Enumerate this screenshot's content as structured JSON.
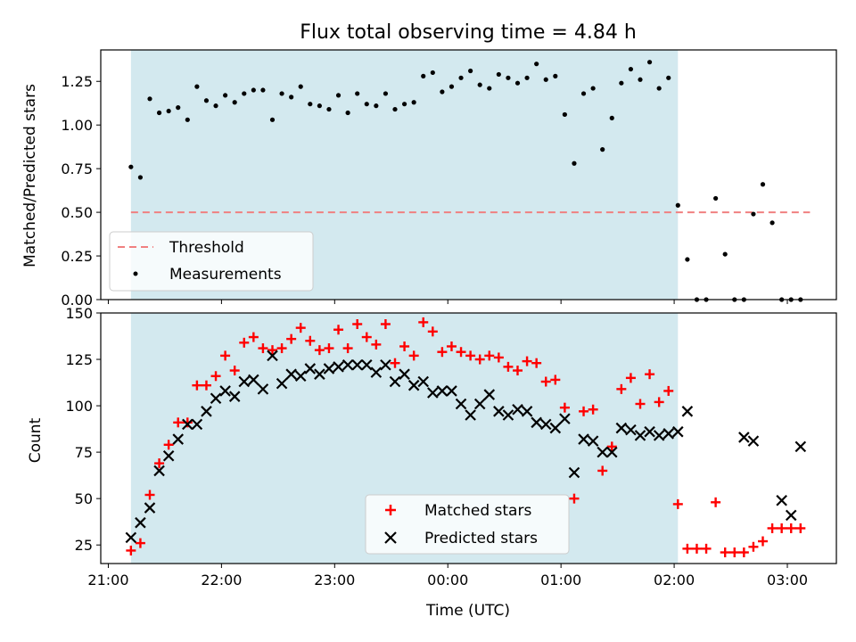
{
  "title": "Flux total observing time = 4.84 h",
  "colors": {
    "shade": "#d3e9ef",
    "threshold": "#f08080",
    "measurement": "#000000",
    "matched": "#ff0000",
    "predicted": "#000000"
  },
  "chart_data": [
    {
      "type": "scatter",
      "ylabel": "Matched/Predicted stars",
      "ylim": [
        0,
        1.43
      ],
      "yticks": [
        0.0,
        0.25,
        0.5,
        0.75,
        1.0,
        1.25
      ],
      "ytick_labels": [
        "0.00",
        "0.25",
        "0.50",
        "0.75",
        "1.00",
        "1.25"
      ],
      "shaded_span": [
        "21:12",
        "02:02"
      ],
      "legend": {
        "placement": "lower-left",
        "entries": [
          "Threshold",
          "Measurements"
        ]
      },
      "threshold": {
        "name": "Threshold",
        "y": 0.5,
        "x": [
          "21:12",
          "03:12"
        ],
        "style": "dashed"
      },
      "series": [
        {
          "name": "Measurements",
          "points": [
            [
              "21:12",
              0.76
            ],
            [
              "21:17",
              0.7
            ],
            [
              "21:22",
              1.15
            ],
            [
              "21:27",
              1.07
            ],
            [
              "21:32",
              1.08
            ],
            [
              "21:37",
              1.1
            ],
            [
              "21:42",
              1.03
            ],
            [
              "21:47",
              1.22
            ],
            [
              "21:52",
              1.14
            ],
            [
              "21:57",
              1.11
            ],
            [
              "22:02",
              1.17
            ],
            [
              "22:07",
              1.13
            ],
            [
              "22:12",
              1.18
            ],
            [
              "22:17",
              1.2
            ],
            [
              "22:22",
              1.2
            ],
            [
              "22:27",
              1.03
            ],
            [
              "22:32",
              1.18
            ],
            [
              "22:37",
              1.16
            ],
            [
              "22:42",
              1.22
            ],
            [
              "22:47",
              1.12
            ],
            [
              "22:52",
              1.11
            ],
            [
              "22:57",
              1.09
            ],
            [
              "23:02",
              1.17
            ],
            [
              "23:07",
              1.07
            ],
            [
              "23:12",
              1.18
            ],
            [
              "23:17",
              1.12
            ],
            [
              "23:22",
              1.11
            ],
            [
              "23:27",
              1.18
            ],
            [
              "23:32",
              1.09
            ],
            [
              "23:37",
              1.12
            ],
            [
              "23:42",
              1.13
            ],
            [
              "23:47",
              1.28
            ],
            [
              "23:52",
              1.3
            ],
            [
              "23:57",
              1.19
            ],
            [
              "00:02",
              1.22
            ],
            [
              "00:07",
              1.27
            ],
            [
              "00:12",
              1.31
            ],
            [
              "00:17",
              1.23
            ],
            [
              "00:22",
              1.21
            ],
            [
              "00:27",
              1.29
            ],
            [
              "00:32",
              1.27
            ],
            [
              "00:37",
              1.24
            ],
            [
              "00:42",
              1.27
            ],
            [
              "00:47",
              1.35
            ],
            [
              "00:52",
              1.26
            ],
            [
              "00:57",
              1.28
            ],
            [
              "01:02",
              1.06
            ],
            [
              "01:07",
              0.78
            ],
            [
              "01:12",
              1.18
            ],
            [
              "01:17",
              1.21
            ],
            [
              "01:22",
              0.86
            ],
            [
              "01:27",
              1.04
            ],
            [
              "01:32",
              1.24
            ],
            [
              "01:37",
              1.32
            ],
            [
              "01:42",
              1.26
            ],
            [
              "01:47",
              1.36
            ],
            [
              "01:52",
              1.21
            ],
            [
              "01:57",
              1.27
            ],
            [
              "02:02",
              0.54
            ],
            [
              "02:07",
              0.23
            ],
            [
              "02:12",
              0.0
            ],
            [
              "02:17",
              0.0
            ],
            [
              "02:22",
              0.58
            ],
            [
              "02:27",
              0.26
            ],
            [
              "02:32",
              0.0
            ],
            [
              "02:37",
              0.0
            ],
            [
              "02:42",
              0.49
            ],
            [
              "02:47",
              0.66
            ],
            [
              "02:52",
              0.44
            ],
            [
              "02:57",
              0.0
            ],
            [
              "03:02",
              0.0
            ],
            [
              "03:07",
              0.0
            ]
          ]
        }
      ]
    },
    {
      "type": "scatter",
      "xlabel": "Time (UTC)",
      "ylabel": "Count",
      "ylim": [
        15,
        150
      ],
      "yticks": [
        25,
        50,
        75,
        100,
        125,
        150
      ],
      "xlim": [
        "20:56",
        "03:26"
      ],
      "xticks": [
        "21:00",
        "22:00",
        "23:00",
        "00:00",
        "01:00",
        "02:00",
        "03:00"
      ],
      "shaded_span": [
        "21:12",
        "02:02"
      ],
      "legend": {
        "placement": "lower-center",
        "entries": [
          "Matched stars",
          "Predicted stars"
        ]
      },
      "series": [
        {
          "name": "Matched stars",
          "points": [
            [
              "21:12",
              22
            ],
            [
              "21:17",
              26
            ],
            [
              "21:22",
              52
            ],
            [
              "21:27",
              69
            ],
            [
              "21:32",
              79
            ],
            [
              "21:37",
              91
            ],
            [
              "21:42",
              91
            ],
            [
              "21:47",
              111
            ],
            [
              "21:52",
              111
            ],
            [
              "21:57",
              116
            ],
            [
              "22:02",
              127
            ],
            [
              "22:07",
              119
            ],
            [
              "22:12",
              134
            ],
            [
              "22:17",
              137
            ],
            [
              "22:22",
              131
            ],
            [
              "22:27",
              130
            ],
            [
              "22:32",
              131
            ],
            [
              "22:37",
              136
            ],
            [
              "22:42",
              142
            ],
            [
              "22:47",
              135
            ],
            [
              "22:52",
              130
            ],
            [
              "22:57",
              131
            ],
            [
              "23:02",
              141
            ],
            [
              "23:07",
              131
            ],
            [
              "23:12",
              144
            ],
            [
              "23:17",
              137
            ],
            [
              "23:22",
              133
            ],
            [
              "23:27",
              144
            ],
            [
              "23:32",
              123
            ],
            [
              "23:37",
              132
            ],
            [
              "23:42",
              127
            ],
            [
              "23:47",
              145
            ],
            [
              "23:52",
              140
            ],
            [
              "23:57",
              129
            ],
            [
              "00:02",
              132
            ],
            [
              "00:07",
              129
            ],
            [
              "00:12",
              127
            ],
            [
              "00:17",
              125
            ],
            [
              "00:22",
              127
            ],
            [
              "00:27",
              126
            ],
            [
              "00:32",
              121
            ],
            [
              "00:37",
              119
            ],
            [
              "00:42",
              124
            ],
            [
              "00:47",
              123
            ],
            [
              "00:52",
              113
            ],
            [
              "00:57",
              114
            ],
            [
              "01:02",
              99
            ],
            [
              "01:07",
              50
            ],
            [
              "01:12",
              97
            ],
            [
              "01:17",
              98
            ],
            [
              "01:22",
              65
            ],
            [
              "01:27",
              78
            ],
            [
              "01:32",
              109
            ],
            [
              "01:37",
              115
            ],
            [
              "01:42",
              101
            ],
            [
              "01:47",
              117
            ],
            [
              "01:52",
              102
            ],
            [
              "01:57",
              108
            ],
            [
              "02:02",
              47
            ],
            [
              "02:07",
              23
            ],
            [
              "02:12",
              23
            ],
            [
              "02:17",
              23
            ],
            [
              "02:22",
              48
            ],
            [
              "02:27",
              21
            ],
            [
              "02:32",
              21
            ],
            [
              "02:37",
              21
            ],
            [
              "02:42",
              24
            ],
            [
              "02:47",
              27
            ],
            [
              "02:52",
              34
            ],
            [
              "02:57",
              34
            ],
            [
              "03:02",
              34
            ],
            [
              "03:07",
              34
            ]
          ]
        },
        {
          "name": "Predicted stars",
          "points": [
            [
              "21:12",
              29
            ],
            [
              "21:17",
              37
            ],
            [
              "21:22",
              45
            ],
            [
              "21:27",
              65
            ],
            [
              "21:32",
              73
            ],
            [
              "21:37",
              82
            ],
            [
              "21:42",
              90
            ],
            [
              "21:47",
              90
            ],
            [
              "21:52",
              97
            ],
            [
              "21:57",
              104
            ],
            [
              "22:02",
              108
            ],
            [
              "22:07",
              105
            ],
            [
              "22:12",
              113
            ],
            [
              "22:17",
              114
            ],
            [
              "22:22",
              109
            ],
            [
              "22:27",
              127
            ],
            [
              "22:32",
              112
            ],
            [
              "22:37",
              117
            ],
            [
              "22:42",
              116
            ],
            [
              "22:47",
              120
            ],
            [
              "22:52",
              117
            ],
            [
              "22:57",
              120
            ],
            [
              "23:02",
              121
            ],
            [
              "23:07",
              122
            ],
            [
              "23:12",
              122
            ],
            [
              "23:17",
              122
            ],
            [
              "23:22",
              118
            ],
            [
              "23:27",
              122
            ],
            [
              "23:32",
              113
            ],
            [
              "23:37",
              117
            ],
            [
              "23:42",
              111
            ],
            [
              "23:47",
              113
            ],
            [
              "23:52",
              107
            ],
            [
              "23:57",
              108
            ],
            [
              "00:02",
              108
            ],
            [
              "00:07",
              101
            ],
            [
              "00:12",
              95
            ],
            [
              "00:17",
              101
            ],
            [
              "00:22",
              106
            ],
            [
              "00:27",
              97
            ],
            [
              "00:32",
              95
            ],
            [
              "00:37",
              98
            ],
            [
              "00:42",
              97
            ],
            [
              "00:47",
              91
            ],
            [
              "00:52",
              90
            ],
            [
              "00:57",
              88
            ],
            [
              "01:02",
              93
            ],
            [
              "01:07",
              64
            ],
            [
              "01:12",
              82
            ],
            [
              "01:17",
              81
            ],
            [
              "01:22",
              75
            ],
            [
              "01:27",
              75
            ],
            [
              "01:32",
              88
            ],
            [
              "01:37",
              87
            ],
            [
              "01:42",
              84
            ],
            [
              "01:47",
              86
            ],
            [
              "01:52",
              84
            ],
            [
              "01:57",
              85
            ],
            [
              "02:02",
              86
            ],
            [
              "02:07",
              97
            ],
            [
              "02:37",
              83
            ],
            [
              "02:42",
              81
            ],
            [
              "02:57",
              49
            ],
            [
              "03:02",
              41
            ],
            [
              "03:07",
              78
            ]
          ]
        }
      ]
    }
  ]
}
